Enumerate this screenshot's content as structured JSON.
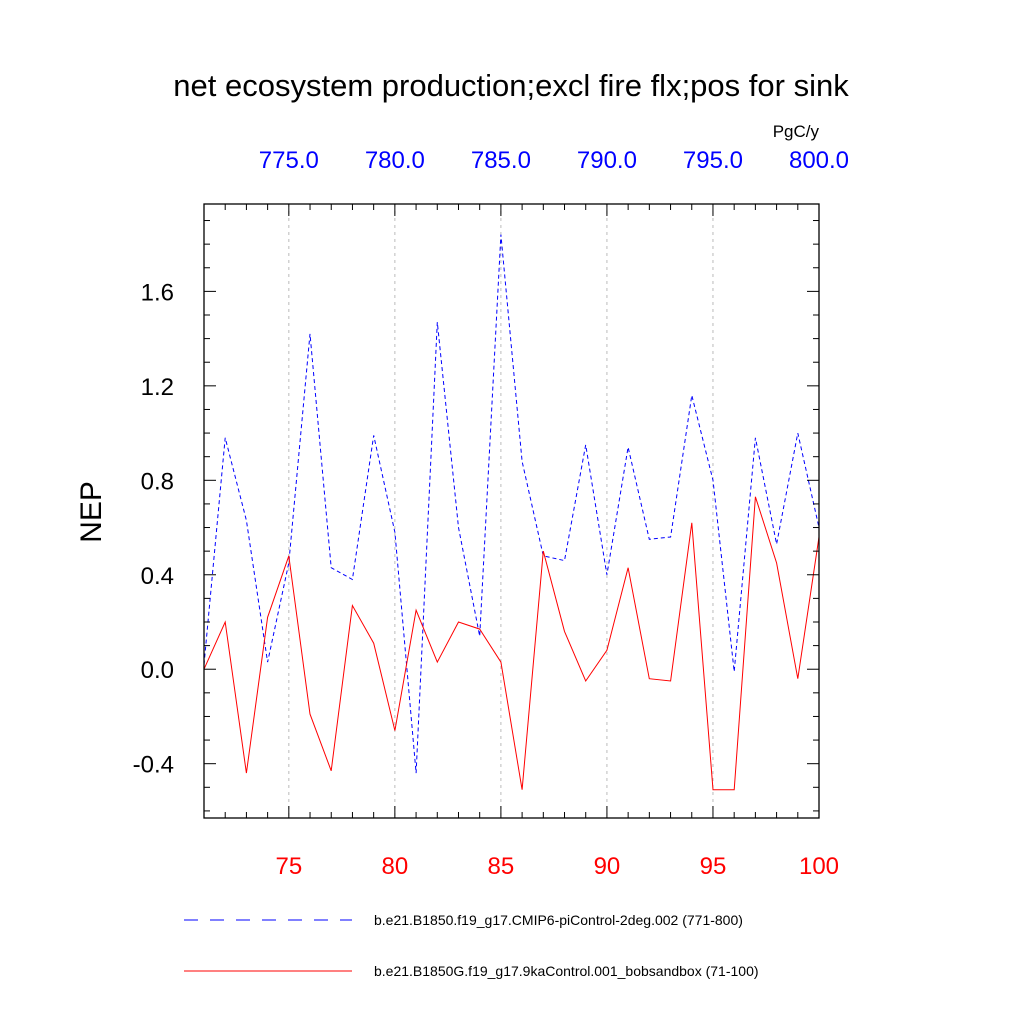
{
  "chart_data": {
    "type": "line",
    "title": "net ecosystem production;excl fire flx;pos for sink",
    "ylabel": "NEP",
    "units": "PgC/y",
    "ylim": [
      -0.63,
      1.97
    ],
    "yticks": [
      -0.4,
      0.0,
      0.4,
      0.8,
      1.2,
      1.6
    ],
    "ytick_labels": [
      "-0.4",
      "0.0",
      "0.4",
      "0.8",
      "1.2",
      "1.6"
    ],
    "bottom_axis": {
      "xlim": [
        71,
        100
      ],
      "ticks": [
        75,
        80,
        85,
        90,
        95,
        100
      ],
      "tick_labels": [
        "75",
        "80",
        "85",
        "90",
        "95",
        "100"
      ],
      "color": "#ff0000"
    },
    "top_axis": {
      "xlim": [
        771,
        800
      ],
      "ticks": [
        775,
        780,
        785,
        790,
        795,
        800
      ],
      "tick_labels": [
        "775.0",
        "780.0",
        "785.0",
        "790.0",
        "795.0",
        "800.0"
      ],
      "color": "#0000ff"
    },
    "grid": "vertical dashed at major ticks",
    "series": [
      {
        "name": "b.e21.B1850.f19_g17.CMIP6-piControl-2deg.002 (771-800)",
        "axis": "top",
        "color": "#0000ff",
        "dash": "dashed",
        "x": [
          771,
          772,
          773,
          774,
          775,
          776,
          777,
          778,
          779,
          780,
          781,
          782,
          783,
          784,
          785,
          786,
          787,
          788,
          789,
          790,
          791,
          792,
          793,
          794,
          795,
          796,
          797,
          798,
          799,
          800
        ],
        "values": [
          0.02,
          0.98,
          0.63,
          0.03,
          0.45,
          1.42,
          0.43,
          0.38,
          0.99,
          0.58,
          -0.44,
          1.47,
          0.6,
          0.14,
          1.84,
          0.88,
          0.48,
          0.46,
          0.95,
          0.4,
          0.94,
          0.55,
          0.56,
          1.16,
          0.8,
          -0.01,
          0.98,
          0.53,
          1.0,
          0.6
        ]
      },
      {
        "name": "b.e21.B1850G.f19_g17.9kaControl.001_bobsandbox (71-100)",
        "axis": "bottom",
        "color": "#ff0000",
        "dash": "solid",
        "x": [
          71,
          72,
          73,
          74,
          75,
          76,
          77,
          78,
          79,
          80,
          81,
          82,
          83,
          84,
          85,
          86,
          87,
          88,
          89,
          90,
          91,
          92,
          93,
          94,
          95,
          96,
          97,
          98,
          99,
          100
        ],
        "values": [
          0.0,
          0.2,
          -0.44,
          0.22,
          0.48,
          -0.19,
          -0.43,
          0.27,
          0.11,
          -0.26,
          0.25,
          0.03,
          0.2,
          0.17,
          0.03,
          -0.51,
          0.5,
          0.16,
          -0.05,
          0.08,
          0.43,
          -0.04,
          -0.05,
          0.62,
          -0.51,
          -0.51,
          0.73,
          0.45,
          -0.04,
          0.56
        ]
      }
    ],
    "legend_placement": "below"
  }
}
